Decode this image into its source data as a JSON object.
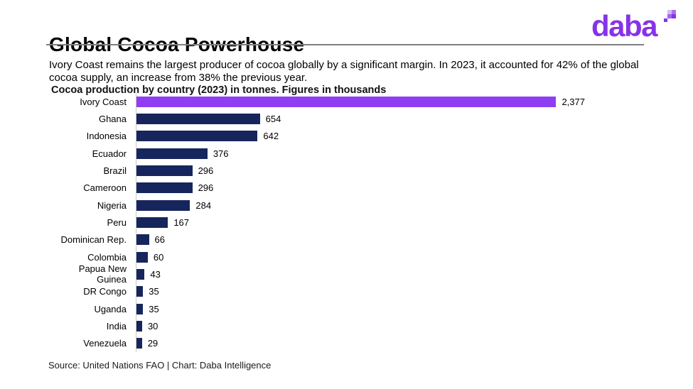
{
  "header": {
    "title": "Global Cocoa Powerhouse",
    "subtitle": "Ivory Coast remains the largest producer of cocoa globally by a significant margin. In 2023, it accounted for 42% of the global cocoa supply, an increase from 38% the previous year.",
    "logo_text": "daba"
  },
  "chart_data": {
    "type": "bar",
    "orientation": "horizontal",
    "title": "Cocoa production by country (2023) in tonnes. Figures in thousands",
    "categories": [
      "Ivory Coast",
      "Ghana",
      "Indonesia",
      "Ecuador",
      "Brazil",
      "Cameroon",
      "Nigeria",
      "Peru",
      "Dominican Rep.",
      "Colombia",
      "Papua New Guinea",
      "DR Congo",
      "Uganda",
      "India",
      "Venezuela"
    ],
    "values": [
      2377,
      654,
      642,
      376,
      296,
      296,
      284,
      167,
      66,
      60,
      43,
      35,
      35,
      30,
      29
    ],
    "value_labels": [
      "2,377",
      "654",
      "642",
      "376",
      "296",
      "296",
      "284",
      "167",
      "66",
      "60",
      "43",
      "35",
      "35",
      "30",
      "29"
    ],
    "xlim": [
      0,
      2377
    ],
    "grid": "off",
    "legend": "none",
    "highlight_index": 0,
    "highlight_color": "#8F3FF2",
    "bar_color": "#16265C",
    "axis_line_color": "#c9c9c9"
  },
  "footer": {
    "source": "Source: United Nations FAO | Chart: Daba Intelligence"
  }
}
